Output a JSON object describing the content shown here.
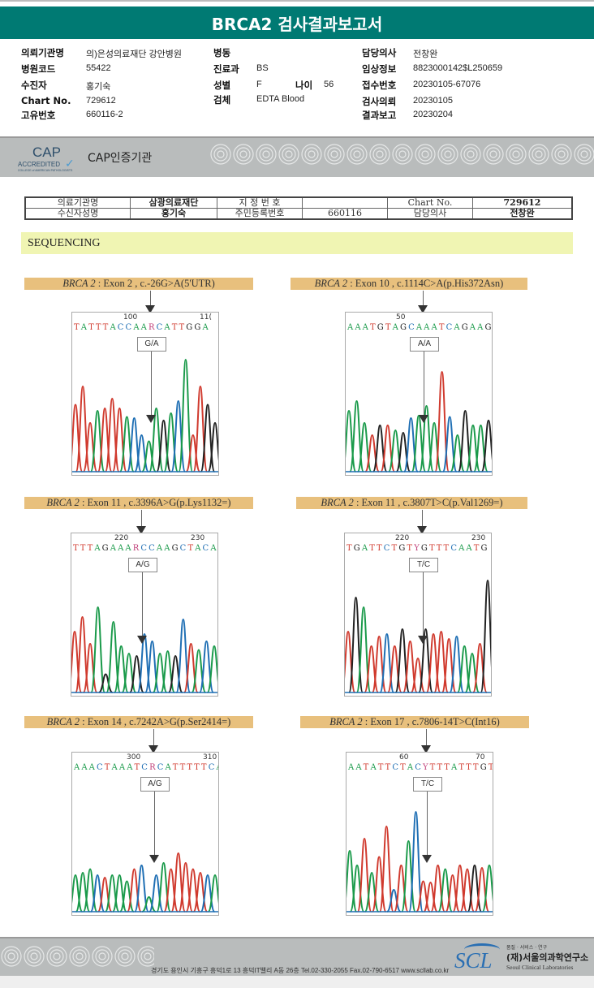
{
  "title": "BRCA2 검사결과보고서",
  "header_info": {
    "institution_label": "의뢰기관명",
    "institution_value": "의)은성의료재단 강안병원",
    "hospital_code_label": "병원코드",
    "hospital_code_value": "55422",
    "patient_label": "수진자",
    "patient_value": "홍기숙",
    "chart_label": "Chart No.",
    "chart_value": "729612",
    "unique_label": "고유번호",
    "unique_value": "660116-2",
    "ward_label": "병동",
    "ward_value": "",
    "dept_label": "진료과",
    "dept_value": "BS",
    "sex_label": "성별",
    "sex_value": "F",
    "age_label": "나이",
    "age_value": "56",
    "specimen_label": "검체",
    "specimen_value": "EDTA Blood",
    "doctor_label": "담당의사",
    "doctor_value": "전창완",
    "clinical_label": "임상정보",
    "clinical_value": "8823000142$L250659",
    "receipt_label": "접수번호",
    "receipt_value": "20230105-67076",
    "request_label": "검사의뢰",
    "request_value": "20230105",
    "report_label": "결과보고",
    "report_value": "20230204"
  },
  "cap": {
    "logo_big": "CAP",
    "logo_accredited": "ACCREDITED",
    "logo_sub": "COLLEGE of AMERICAN PATHOLOGISTS",
    "text": "CAP인증기관"
  },
  "patient_table": {
    "r1": [
      "의료기관명",
      "삼광의료재단",
      "지 정 번 호",
      "",
      "Chart No.",
      "729612"
    ],
    "r2": [
      "수신자성명",
      "홍기숙",
      "주민등록번호",
      "660116",
      "담당의사",
      "전창완"
    ]
  },
  "section_title": "SEQUENCING",
  "colors": {
    "A": "#1a9a4a",
    "C": "#1f6fb4",
    "G": "#222222",
    "T": "#d03a2e",
    "R": "#c0407a",
    "Y": "#c0407a",
    "teal": "#007a73"
  },
  "variants": [
    {
      "gene": "BRCA 2",
      "desc": " : Exon 2 , c.-26G>A(5'UTR)",
      "pos1": "100",
      "pos2": "11(",
      "seq": "TATTTACCAARCATTGGA",
      "genotype": "G/A"
    },
    {
      "gene": "BRCA 2",
      "desc": " : Exon 10 , c.1114C>A(p.His372Asn)",
      "pos1": "50",
      "pos2": "",
      "seq": "AAATGTAGCAAATCAGAAG",
      "genotype": "A/A"
    },
    {
      "gene": "BRCA 2",
      "desc": " : Exon 11 , c.3396A>G(p.Lys1132=)",
      "pos1": "220",
      "pos2": "230",
      "seq": "TTTAGAAARCCAAGCTACA",
      "genotype": "A/G"
    },
    {
      "gene": "BRCA 2",
      "desc": " : Exon 11 , c.3807T>C(p.Val1269=)",
      "pos1": "220",
      "pos2": "230",
      "seq": "TGATTCTGTYGTTTCAATG",
      "genotype": "T/C"
    },
    {
      "gene": "BRCA 2",
      "desc": " : Exon 14 , c.7242A>G(p.Ser2414=)",
      "pos1": "300",
      "pos2": "310",
      "seq": "AAACTAAATCRCATTTTTCA",
      "genotype": "A/G"
    },
    {
      "gene": "BRCA 2",
      "desc": " : Exon 17 , c.7806-14T>C(Int16)",
      "pos1": "60",
      "pos2": "70",
      "seq": "AATATTCTACYTTTATTTGT",
      "genotype": "T/C"
    }
  ],
  "footer": {
    "address": "경기도 용인시 기흥구 흥덕1로 13 흥덕IT밸리 A동 26층  Tel.02-330-2055  Fax.02-790-6517  www.scllab.co.kr",
    "logo": "SCL",
    "tagline": "품질 · 서비스 · 연구",
    "org_kr": "(재)서울의과학연구소",
    "org_en": "Seoul Clinical Laboratories"
  }
}
